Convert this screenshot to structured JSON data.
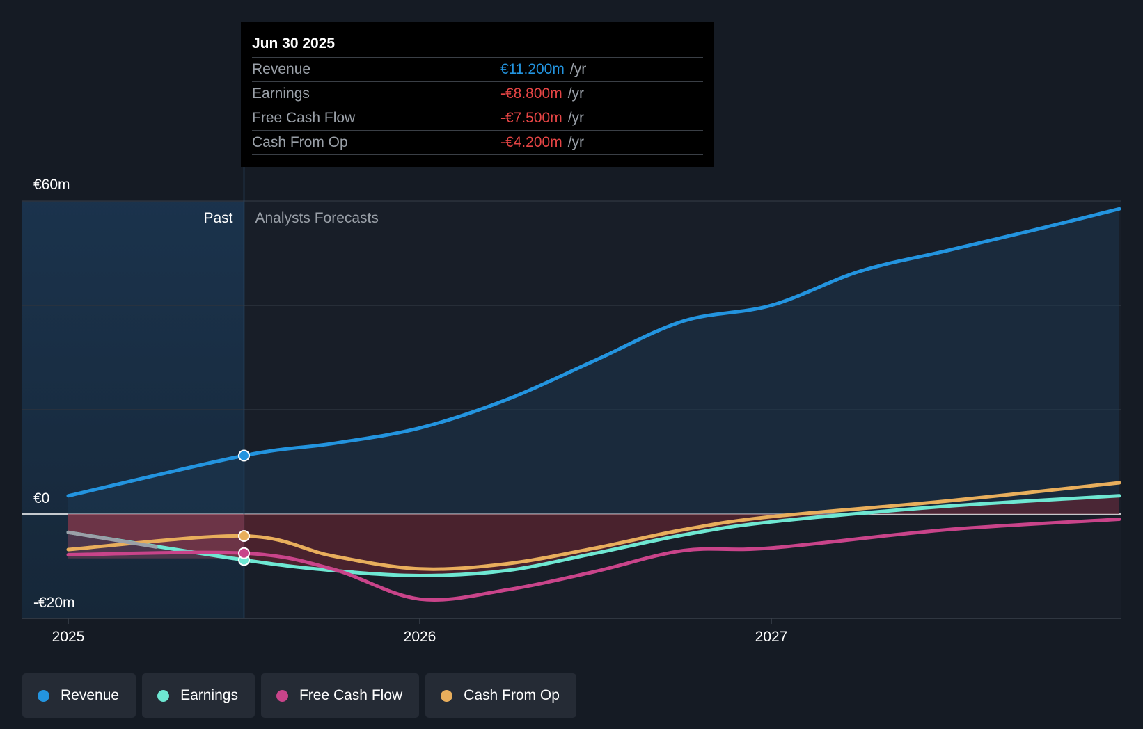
{
  "tooltip": {
    "date": "Jun 30 2025",
    "rows": [
      {
        "label": "Revenue",
        "value": "€11.200m",
        "unit": "/yr",
        "color": "#2394df"
      },
      {
        "label": "Earnings",
        "value": "-€8.800m",
        "unit": "/yr",
        "color": "#e64545"
      },
      {
        "label": "Free Cash Flow",
        "value": "-€7.500m",
        "unit": "/yr",
        "color": "#e64545"
      },
      {
        "label": "Cash From Op",
        "value": "-€4.200m",
        "unit": "/yr",
        "color": "#e64545"
      }
    ]
  },
  "legend": [
    {
      "label": "Revenue",
      "color": "#2394df"
    },
    {
      "label": "Earnings",
      "color": "#6ee7d2"
    },
    {
      "label": "Free Cash Flow",
      "color": "#c9448a"
    },
    {
      "label": "Cash From Op",
      "color": "#e8ae5c"
    }
  ],
  "chart_data": {
    "type": "line",
    "past_label": "Past",
    "forecast_label": "Analysts Forecasts",
    "divider_x": 2025.5,
    "xlim": [
      2024.87,
      2027.99
    ],
    "ylim": [
      -20,
      60
    ],
    "y_ticks": [
      {
        "value": 60,
        "label": "€60m"
      },
      {
        "value": 0,
        "label": "€0"
      },
      {
        "value": -20,
        "label": "-€20m"
      }
    ],
    "x_ticks": [
      {
        "value": 2025,
        "label": "2025"
      },
      {
        "value": 2026,
        "label": "2026"
      },
      {
        "value": 2027,
        "label": "2027"
      }
    ],
    "gridlines": [
      60,
      40,
      20
    ],
    "series": [
      {
        "name": "Revenue",
        "color": "#2394df",
        "x": [
          2025.0,
          2025.5,
          2025.75,
          2026.0,
          2026.25,
          2026.5,
          2026.75,
          2027.0,
          2027.25,
          2027.5,
          2027.75,
          2027.99
        ],
        "y": [
          3.5,
          11.2,
          13.5,
          16.5,
          22.0,
          29.5,
          37.0,
          40.0,
          46.5,
          50.5,
          54.5,
          58.5
        ]
      },
      {
        "name": "Earnings",
        "color": "#6ee7d2",
        "x": [
          2025.0,
          2025.5,
          2025.75,
          2026.0,
          2026.25,
          2026.5,
          2026.75,
          2027.0,
          2027.5,
          2027.99
        ],
        "y": [
          -3.5,
          -8.8,
          -10.8,
          -11.8,
          -10.8,
          -7.5,
          -4.0,
          -1.5,
          1.5,
          3.5
        ]
      },
      {
        "name": "Free Cash Flow",
        "color": "#c9448a",
        "x": [
          2025.0,
          2025.5,
          2025.75,
          2026.0,
          2026.25,
          2026.5,
          2026.75,
          2027.0,
          2027.5,
          2027.99
        ],
        "y": [
          -7.8,
          -7.5,
          -10.5,
          -16.3,
          -14.5,
          -11.0,
          -7.0,
          -6.5,
          -3.0,
          -1.0
        ]
      },
      {
        "name": "Cash From Op",
        "color": "#e8ae5c",
        "x": [
          2025.0,
          2025.5,
          2025.75,
          2026.0,
          2026.25,
          2026.5,
          2026.75,
          2027.0,
          2027.5,
          2027.99
        ],
        "y": [
          -6.8,
          -4.2,
          -8.0,
          -10.5,
          -9.5,
          -6.5,
          -3.0,
          -0.5,
          2.5,
          6.0
        ]
      }
    ]
  }
}
